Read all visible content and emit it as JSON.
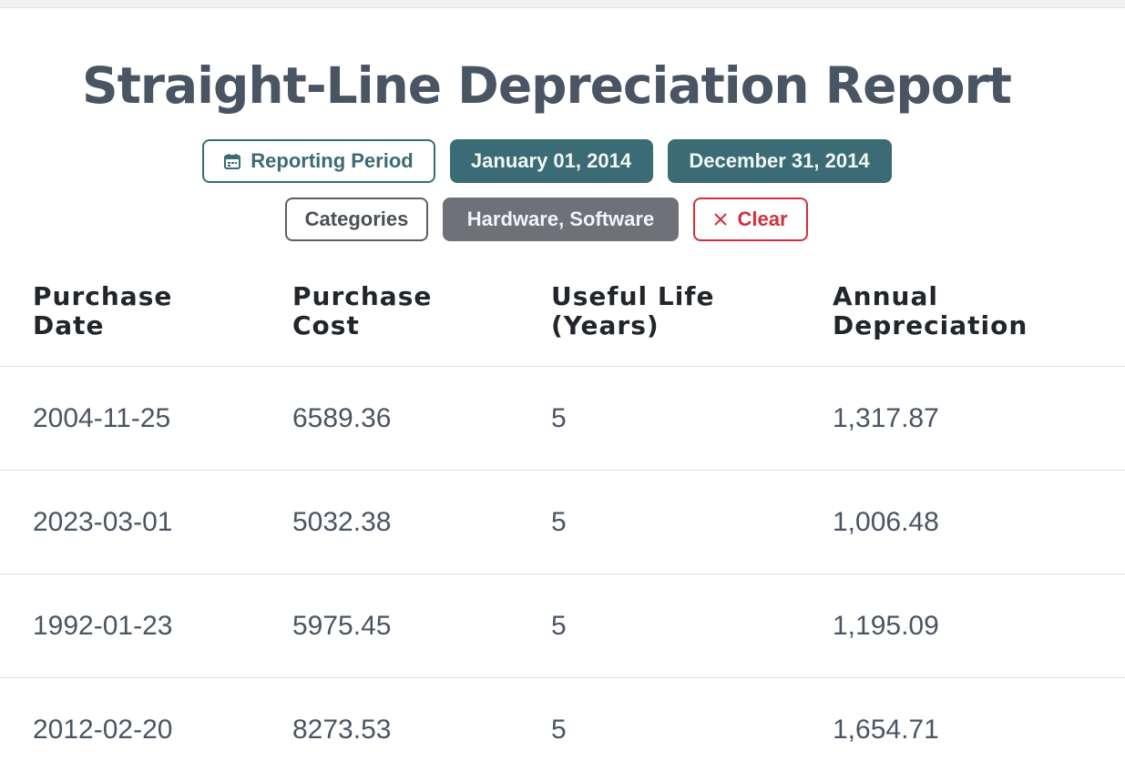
{
  "report": {
    "title": "Straight-Line Depreciation Report"
  },
  "filters": {
    "reporting_period_label": "Reporting Period",
    "start_date": "January 01, 2014",
    "end_date": "December 31, 2014",
    "categories_label": "Categories",
    "categories_value": "Hardware, Software",
    "clear_label": "Clear"
  },
  "icons": {
    "reporting_period": "calendar-icon",
    "clear": "close-icon"
  },
  "colors": {
    "accent_teal": "#3b6b74",
    "chip_gray": "#6f7178",
    "clear_red": "#d0313b",
    "title_text": "#4a5563"
  },
  "table": {
    "headers": [
      "Purchase\nDate",
      "Purchase\nCost",
      "Useful Life\n(Years)",
      "Annual\nDepreciation"
    ],
    "rows": [
      [
        "2004-11-25",
        "6589.36",
        "5",
        "1,317.87"
      ],
      [
        "2023-03-01",
        "5032.38",
        "5",
        "1,006.48"
      ],
      [
        "1992-01-23",
        "5975.45",
        "5",
        "1,195.09"
      ],
      [
        "2012-02-20",
        "8273.53",
        "5",
        "1,654.71"
      ]
    ]
  }
}
